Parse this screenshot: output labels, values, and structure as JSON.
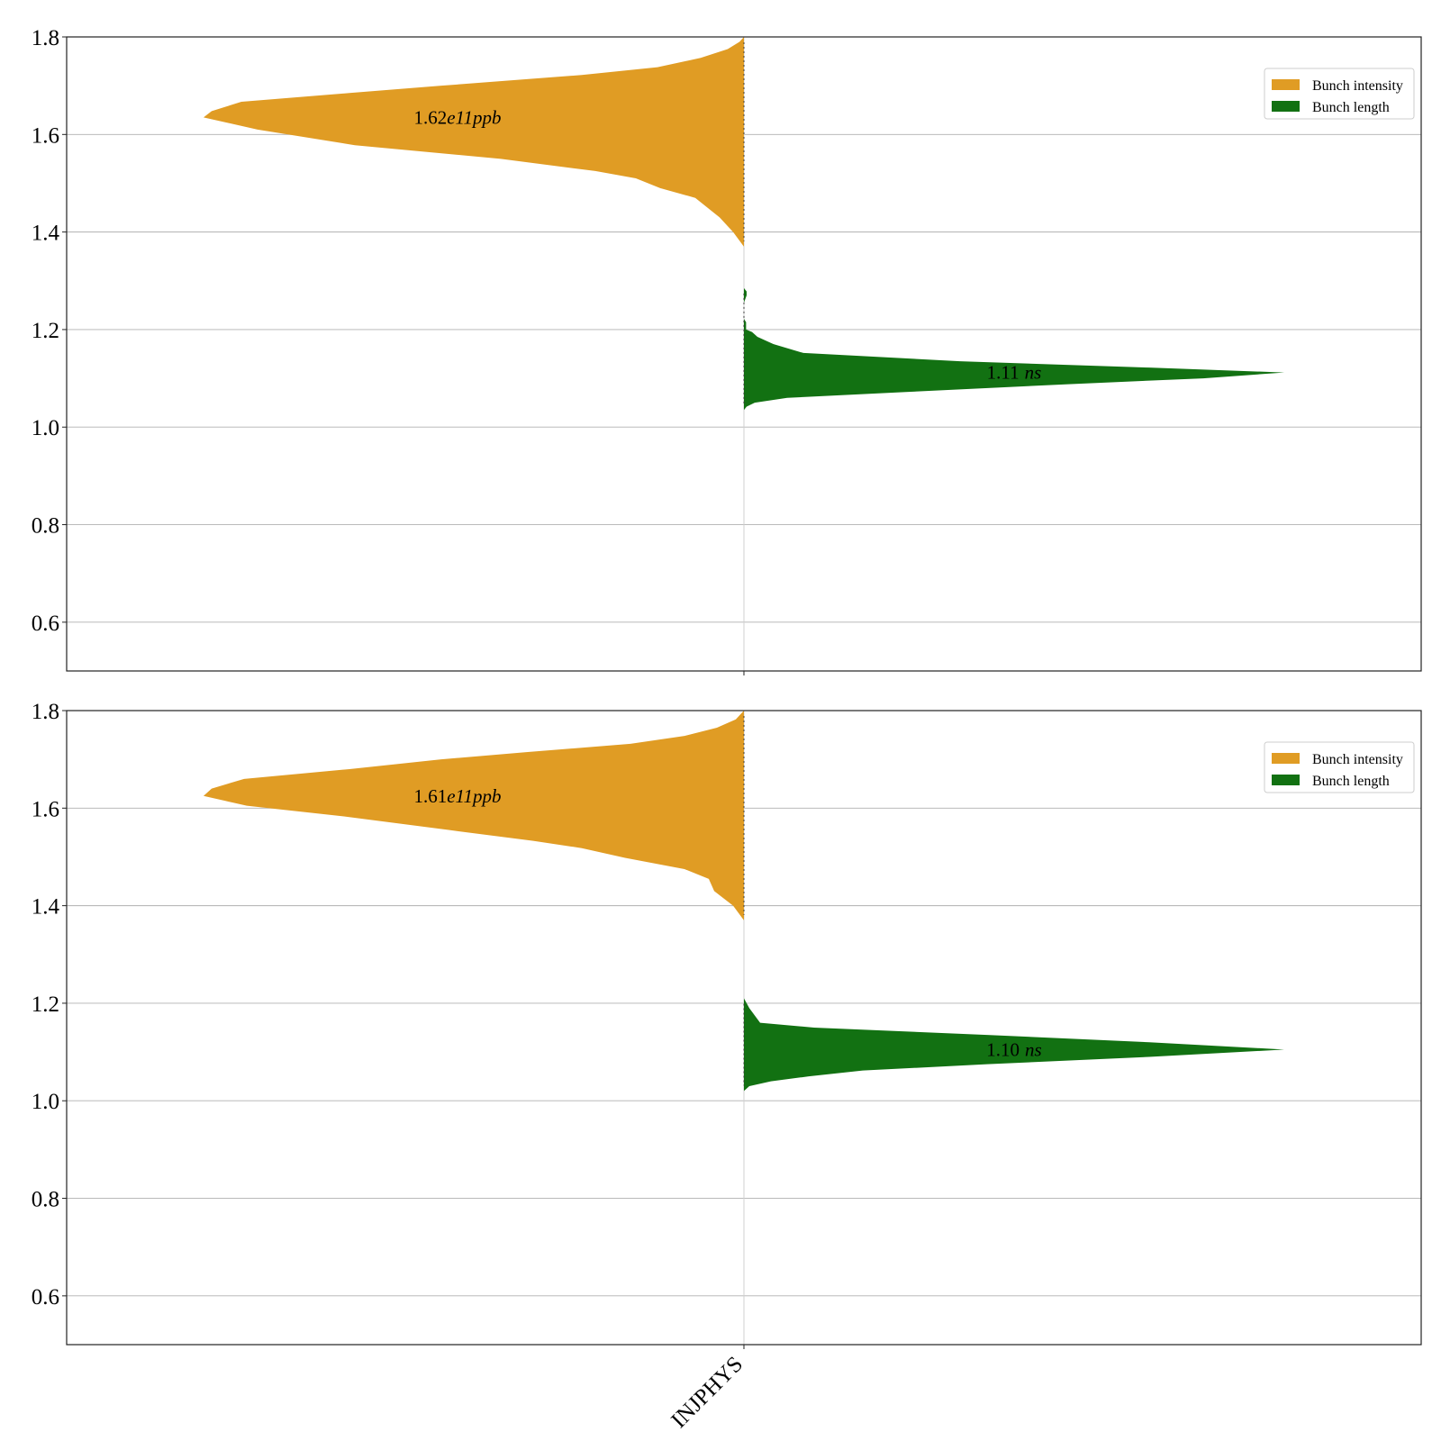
{
  "chart_data": [
    {
      "type": "violin",
      "category": "INJPHYS",
      "ylim": [
        0.5,
        1.8
      ],
      "yticks": [
        "0.6",
        "0.8",
        "1.0",
        "1.2",
        "1.4",
        "1.6",
        "1.8"
      ],
      "grid": "horizontal",
      "legend_position": "top-right",
      "series": [
        {
          "name": "Bunch intensity",
          "color": "#e09c24",
          "side": "left",
          "annotation_value": "1.62",
          "annotation_unit": "e11ppb",
          "density": [
            [
              1.37,
              0.0
            ],
            [
              1.4,
              0.02
            ],
            [
              1.43,
              0.045
            ],
            [
              1.47,
              0.09
            ],
            [
              1.49,
              0.155
            ],
            [
              1.51,
              0.2
            ],
            [
              1.525,
              0.275
            ],
            [
              1.55,
              0.45
            ],
            [
              1.578,
              0.72
            ],
            [
              1.61,
              0.9
            ],
            [
              1.635,
              1.0
            ],
            [
              1.648,
              0.985
            ],
            [
              1.667,
              0.93
            ],
            [
              1.685,
              0.73
            ],
            [
              1.7,
              0.56
            ],
            [
              1.722,
              0.3
            ],
            [
              1.738,
              0.16
            ],
            [
              1.757,
              0.08
            ],
            [
              1.775,
              0.03
            ],
            [
              1.79,
              0.008
            ],
            [
              1.8,
              0.0
            ]
          ]
        },
        {
          "name": "Bunch length",
          "color": "#127112",
          "side": "right",
          "annotation_value": "1.11",
          "annotation_unit": "ns",
          "density": [
            [
              1.035,
              0.0
            ],
            [
              1.042,
              0.005
            ],
            [
              1.05,
              0.02
            ],
            [
              1.06,
              0.08
            ],
            [
              1.072,
              0.3
            ],
            [
              1.088,
              0.6
            ],
            [
              1.1,
              0.85
            ],
            [
              1.112,
              1.0
            ],
            [
              1.122,
              0.75
            ],
            [
              1.135,
              0.4
            ],
            [
              1.152,
              0.11
            ],
            [
              1.17,
              0.055
            ],
            [
              1.185,
              0.025
            ],
            [
              1.195,
              0.015
            ],
            [
              1.2,
              0.004
            ],
            [
              1.205,
              0.004
            ],
            [
              1.215,
              0.004
            ],
            [
              1.222,
              0.0
            ],
            [
              1.24,
              0.0
            ],
            [
              1.255,
              0.0
            ],
            [
              1.27,
              0.005
            ],
            [
              1.278,
              0.005
            ],
            [
              1.285,
              0.0
            ]
          ]
        }
      ]
    },
    {
      "type": "violin",
      "category": "INJPHYS",
      "ylim": [
        0.5,
        1.8
      ],
      "yticks": [
        "0.6",
        "0.8",
        "1.0",
        "1.2",
        "1.4",
        "1.6",
        "1.8"
      ],
      "grid": "horizontal",
      "legend_position": "top-right",
      "series": [
        {
          "name": "Bunch intensity",
          "color": "#e09c24",
          "side": "left",
          "annotation_value": "1.61",
          "annotation_unit": "e11ppb",
          "density": [
            [
              1.37,
              0.0
            ],
            [
              1.4,
              0.02
            ],
            [
              1.43,
              0.055
            ],
            [
              1.455,
              0.065
            ],
            [
              1.475,
              0.11
            ],
            [
              1.498,
              0.22
            ],
            [
              1.518,
              0.3
            ],
            [
              1.533,
              0.39
            ],
            [
              1.555,
              0.545
            ],
            [
              1.583,
              0.74
            ],
            [
              1.605,
              0.92
            ],
            [
              1.625,
              1.0
            ],
            [
              1.64,
              0.985
            ],
            [
              1.66,
              0.925
            ],
            [
              1.68,
              0.73
            ],
            [
              1.7,
              0.56
            ],
            [
              1.715,
              0.4
            ],
            [
              1.732,
              0.21
            ],
            [
              1.748,
              0.11
            ],
            [
              1.765,
              0.05
            ],
            [
              1.782,
              0.015
            ],
            [
              1.8,
              0.0
            ]
          ]
        },
        {
          "name": "Bunch length",
          "color": "#127112",
          "side": "right",
          "annotation_value": "1.10",
          "annotation_unit": "ns",
          "density": [
            [
              1.02,
              0.0
            ],
            [
              1.03,
              0.01
            ],
            [
              1.04,
              0.05
            ],
            [
              1.05,
              0.12
            ],
            [
              1.062,
              0.22
            ],
            [
              1.075,
              0.45
            ],
            [
              1.09,
              0.75
            ],
            [
              1.105,
              1.0
            ],
            [
              1.12,
              0.75
            ],
            [
              1.135,
              0.45
            ],
            [
              1.15,
              0.13
            ],
            [
              1.16,
              0.03
            ],
            [
              1.175,
              0.02
            ],
            [
              1.19,
              0.01
            ],
            [
              1.2,
              0.005
            ],
            [
              1.21,
              0.0
            ]
          ]
        }
      ]
    }
  ],
  "xticklabel": "INJPHYS"
}
